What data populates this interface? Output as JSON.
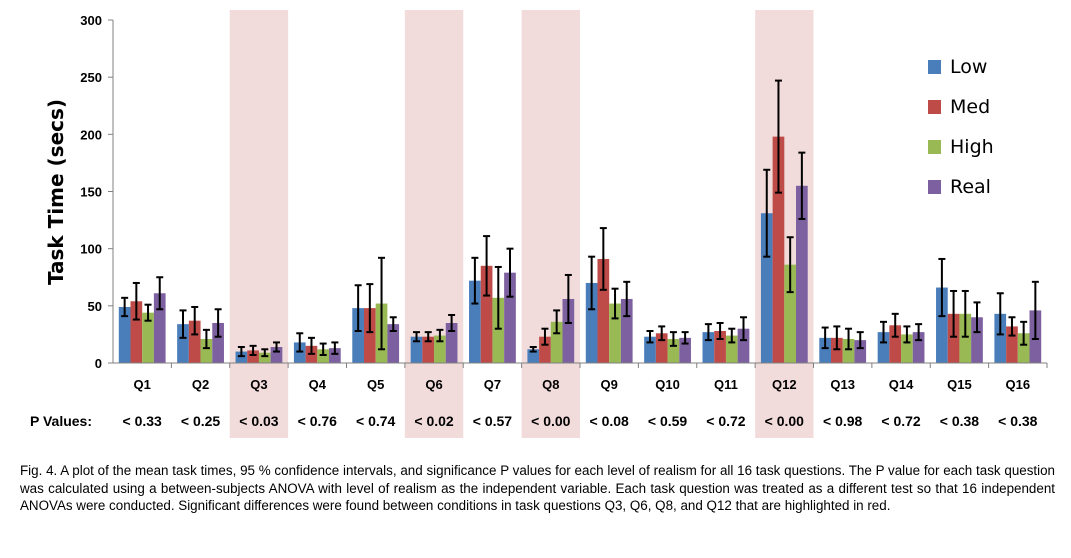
{
  "chart_data": {
    "type": "bar",
    "ylabel": "Task Time (secs)",
    "xlabel": "",
    "ylim": [
      0,
      300
    ],
    "yticks": [
      0,
      50,
      100,
      150,
      200,
      250,
      300
    ],
    "categories": [
      "Q1",
      "Q2",
      "Q3",
      "Q4",
      "Q5",
      "Q6",
      "Q7",
      "Q8",
      "Q9",
      "Q10",
      "Q11",
      "Q12",
      "Q13",
      "Q14",
      "Q15",
      "Q16"
    ],
    "series": [
      {
        "name": "Low",
        "color": "#4a7ebb",
        "values": [
          49,
          34,
          10,
          18,
          48,
          23,
          72,
          12,
          70,
          23,
          27,
          131,
          22,
          27,
          66,
          43
        ],
        "ci": [
          8,
          12,
          4,
          8,
          20,
          4,
          20,
          2,
          23,
          5,
          7,
          38,
          9,
          9,
          25,
          18
        ]
      },
      {
        "name": "Med",
        "color": "#be4b48",
        "values": [
          54,
          37,
          11,
          15,
          48,
          23,
          85,
          23,
          91,
          26,
          28,
          198,
          22,
          33,
          43,
          32
        ],
        "ci": [
          16,
          12,
          4,
          7,
          21,
          4,
          26,
          7,
          27,
          6,
          7,
          49,
          10,
          10,
          20,
          8
        ]
      },
      {
        "name": "High",
        "color": "#98b954",
        "values": [
          44,
          21,
          9,
          12,
          52,
          24,
          57,
          36,
          52,
          21,
          24,
          86,
          21,
          25,
          43,
          26
        ],
        "ci": [
          7,
          8,
          3,
          5,
          40,
          5,
          27,
          10,
          13,
          6,
          6,
          24,
          9,
          7,
          20,
          10
        ]
      },
      {
        "name": "Real",
        "color": "#7d60a0",
        "values": [
          61,
          35,
          14,
          13,
          34,
          35,
          79,
          56,
          56,
          22,
          30,
          155,
          20,
          27,
          40,
          46
        ],
        "ci": [
          14,
          12,
          4,
          5,
          6,
          7,
          21,
          21,
          15,
          5,
          10,
          29,
          7,
          7,
          13,
          25
        ]
      }
    ],
    "highlighted": [
      "Q3",
      "Q6",
      "Q8",
      "Q12"
    ],
    "highlight_color": "#f2dcdb",
    "legend_position": "top-right",
    "grid": false
  },
  "pvalues": {
    "label": "P Values:",
    "values": [
      "< 0.33",
      "< 0.25",
      "< 0.03",
      "< 0.76",
      "< 0.74",
      "< 0.02",
      "< 0.57",
      "< 0.00",
      "< 0.08",
      "< 0.59",
      "< 0.72",
      "< 0.00",
      "< 0.98",
      "< 0.72",
      "< 0.38",
      "< 0.38"
    ]
  },
  "caption": "Fig. 4. A plot of the mean task times, 95 % confidence intervals, and significance P values for each level of realism for all 16 task questions. The P value for each task question was calculated using a between-subjects ANOVA with level of realism as the independent variable. Each task question was treated as a different test so that 16 independent ANOVAs were conducted.  Significant differences were found between conditions in task questions Q3, Q6, Q8, and Q12 that are highlighted in red."
}
